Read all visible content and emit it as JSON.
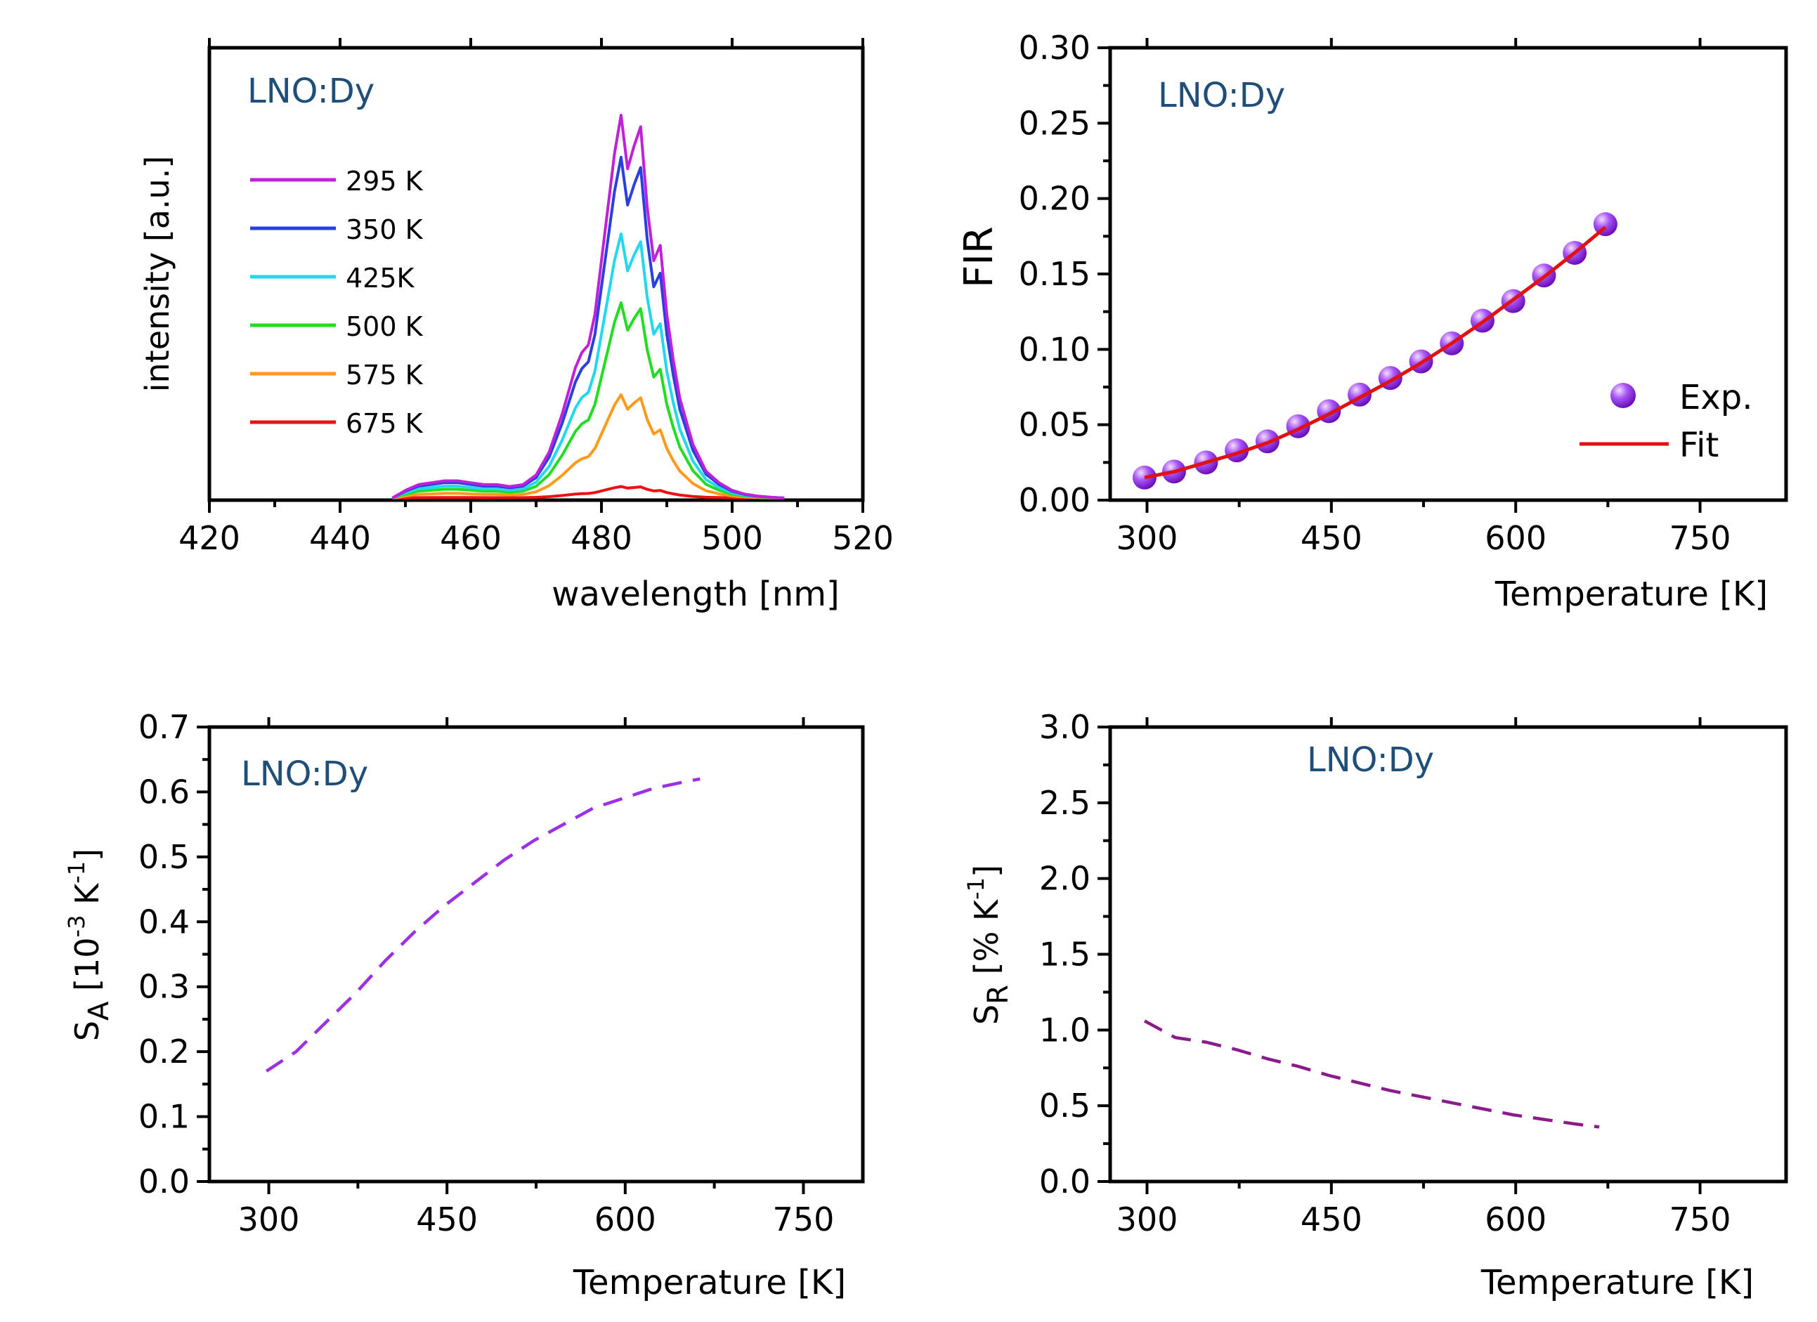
{
  "colors": {
    "sample_label": "#1f4e79",
    "marker": "#a855f7",
    "fit": "#e11111",
    "sa_line": "#9b30e8",
    "sr_line": "#8b1a8b"
  },
  "chart_data": [
    {
      "id": "spectra",
      "type": "line",
      "xlabel": "wavelength [nm]",
      "ylabel": "intensity [a.u.]",
      "xlim": [
        420,
        520
      ],
      "ylim": [
        0,
        1.0
      ],
      "x_ticks": [
        420,
        440,
        460,
        480,
        500,
        520
      ],
      "x_tick_labels": [
        "420",
        "440",
        "460",
        "480",
        "500",
        "520"
      ],
      "y_ticks_hidden": true,
      "sample_label": "LNO:Dy",
      "legend_position": "top-left",
      "series": [
        {
          "name": "295 K",
          "color": "#c020d8",
          "scale": 1.0
        },
        {
          "name": "350 K",
          "color": "#2a3fe0",
          "scale": 0.89
        },
        {
          "name": "425K",
          "color": "#22d8ee",
          "scale": 0.69
        },
        {
          "name": "500 K",
          "color": "#22dd22",
          "scale": 0.51
        },
        {
          "name": "575 K",
          "color": "#ff9a1a",
          "scale": 0.27
        },
        {
          "name": "675 K",
          "color": "#ee1111",
          "scale": 0.03
        }
      ],
      "profile_x": [
        448,
        450,
        452,
        454,
        456,
        458,
        460,
        462,
        464,
        466,
        468,
        470,
        472,
        474,
        476,
        477,
        478,
        479,
        480,
        481,
        482,
        483,
        484,
        485,
        486,
        487,
        488,
        489,
        490,
        491,
        492,
        494,
        496,
        498,
        500,
        502,
        504,
        506,
        508
      ],
      "profile_y": [
        0.0,
        0.02,
        0.035,
        0.04,
        0.045,
        0.045,
        0.04,
        0.035,
        0.035,
        0.03,
        0.035,
        0.06,
        0.12,
        0.22,
        0.34,
        0.38,
        0.4,
        0.48,
        0.62,
        0.76,
        0.9,
        1.0,
        0.86,
        0.92,
        0.97,
        0.76,
        0.62,
        0.66,
        0.48,
        0.36,
        0.26,
        0.14,
        0.07,
        0.04,
        0.02,
        0.01,
        0.005,
        0.002,
        0.0
      ]
    },
    {
      "id": "fir",
      "type": "scatter",
      "xlabel": "Temperature [K]",
      "ylabel": "FIR",
      "xlim": [
        270,
        820
      ],
      "ylim": [
        0,
        0.3
      ],
      "x_ticks": [
        300,
        450,
        600,
        750
      ],
      "x_tick_labels": [
        "300",
        "450",
        "600",
        "750"
      ],
      "y_ticks": [
        0,
        0.05,
        0.1,
        0.15,
        0.2,
        0.25,
        0.3
      ],
      "y_tick_labels": [
        "0.00",
        "0.05",
        "0.10",
        "0.15",
        "0.20",
        "0.25",
        "0.30"
      ],
      "sample_label": "LNO:Dy",
      "legend_position": "bottom-right",
      "series": [
        {
          "name": "Exp.",
          "kind": "scatter",
          "x": [
            298,
            322,
            348,
            373,
            398,
            423,
            448,
            473,
            498,
            523,
            548,
            573,
            598,
            623,
            648,
            673
          ],
          "y": [
            0.015,
            0.019,
            0.025,
            0.033,
            0.039,
            0.049,
            0.059,
            0.07,
            0.081,
            0.092,
            0.104,
            0.119,
            0.132,
            0.149,
            0.164,
            0.183
          ]
        },
        {
          "name": "Fit",
          "kind": "line",
          "x": [
            298,
            323,
            348,
            373,
            398,
            423,
            448,
            473,
            498,
            523,
            548,
            573,
            598,
            623,
            648,
            673
          ],
          "y": [
            0.015,
            0.019,
            0.025,
            0.031,
            0.038,
            0.047,
            0.057,
            0.068,
            0.079,
            0.091,
            0.104,
            0.118,
            0.133,
            0.148,
            0.164,
            0.181
          ]
        }
      ]
    },
    {
      "id": "sa",
      "type": "line",
      "xlabel": "Temperature [K]",
      "ylabel_main": "S",
      "ylabel_sub": "A",
      "ylabel_unit": "[10",
      "ylabel_unit_sup": "-3",
      "ylabel_unit_mid": " K",
      "ylabel_unit_sup2": "-1",
      "ylabel_unit_end": "]",
      "xlim": [
        250,
        800
      ],
      "ylim": [
        0,
        0.7
      ],
      "x_ticks": [
        300,
        450,
        600,
        750
      ],
      "x_tick_labels": [
        "300",
        "450",
        "600",
        "750"
      ],
      "y_ticks": [
        0,
        0.1,
        0.2,
        0.3,
        0.4,
        0.5,
        0.6,
        0.7
      ],
      "y_tick_labels": [
        "0.0",
        "0.1",
        "0.2",
        "0.3",
        "0.4",
        "0.5",
        "0.6",
        "0.7"
      ],
      "sample_label": "LNO:Dy",
      "series": [
        {
          "name": "S_A",
          "style": "dashed",
          "x": [
            298,
            323,
            348,
            373,
            398,
            423,
            448,
            473,
            498,
            523,
            548,
            573,
            598,
            623,
            648,
            663
          ],
          "y": [
            0.17,
            0.2,
            0.245,
            0.29,
            0.34,
            0.385,
            0.425,
            0.46,
            0.495,
            0.525,
            0.55,
            0.575,
            0.59,
            0.605,
            0.615,
            0.62
          ]
        }
      ]
    },
    {
      "id": "sr",
      "type": "line",
      "xlabel": "Temperature [K]",
      "ylabel_main": "S",
      "ylabel_sub": "R",
      "ylabel_unit": "[% K",
      "ylabel_unit_sup": "-1",
      "ylabel_unit_end": "]",
      "xlim": [
        270,
        820
      ],
      "ylim": [
        0,
        3.0
      ],
      "x_ticks": [
        300,
        450,
        600,
        750
      ],
      "x_tick_labels": [
        "300",
        "450",
        "600",
        "750"
      ],
      "y_ticks": [
        0,
        0.5,
        1.0,
        1.5,
        2.0,
        2.5,
        3.0
      ],
      "y_tick_labels": [
        "0.0",
        "0.5",
        "1.0",
        "1.5",
        "2.0",
        "2.5",
        "3.0"
      ],
      "sample_label": "LNO:Dy",
      "series": [
        {
          "name": "S_R",
          "style": "dashed",
          "x": [
            298,
            323,
            348,
            373,
            398,
            423,
            448,
            473,
            498,
            523,
            548,
            573,
            598,
            623,
            648,
            668
          ],
          "y": [
            1.06,
            0.95,
            0.92,
            0.87,
            0.81,
            0.76,
            0.7,
            0.65,
            0.6,
            0.56,
            0.52,
            0.48,
            0.44,
            0.41,
            0.38,
            0.36
          ]
        }
      ]
    }
  ]
}
